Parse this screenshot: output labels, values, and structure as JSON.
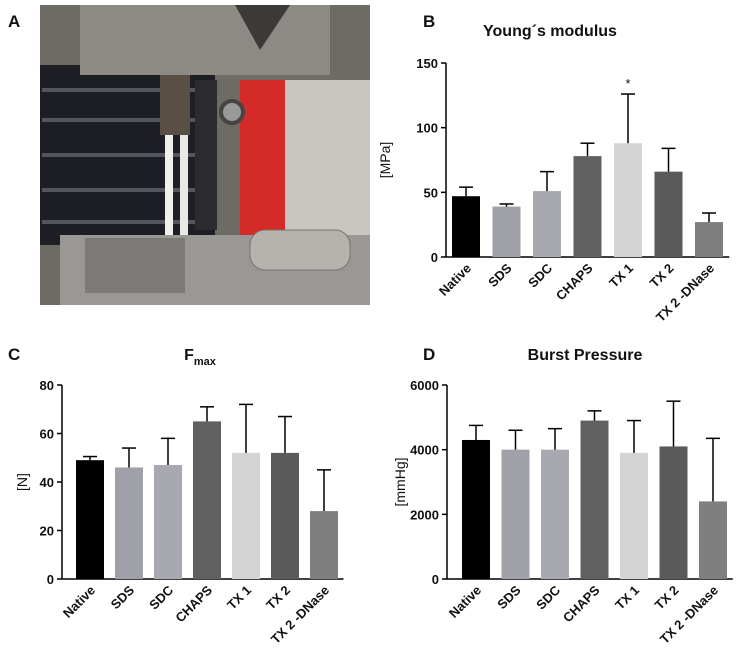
{
  "panel_labels": [
    "A",
    "B",
    "C",
    "D"
  ],
  "chart_data": [
    {
      "type": "bar",
      "title": "Young´s modulus",
      "ylabel": "[MPa]",
      "categories": [
        "Native",
        "SDS",
        "SDC",
        "CHAPS",
        "TX 1",
        "TX 2",
        "TX 2 -DNase"
      ],
      "values": [
        47,
        39,
        51,
        78,
        88,
        66,
        27
      ],
      "errors": [
        7,
        2,
        15,
        10,
        38,
        18,
        7
      ],
      "colors": [
        "#000000",
        "#a0a0a8",
        "#a8a8b0",
        "#606060",
        "#d4d4d4",
        "#5a5a5a",
        "#7f7f7f"
      ],
      "ylim": [
        0,
        150
      ],
      "yticks": [
        0,
        50,
        100,
        150
      ],
      "annotations": [
        {
          "text": "*",
          "category": "TX 1"
        }
      ]
    },
    {
      "type": "bar",
      "title": "F",
      "title_sub": "max",
      "ylabel": "[N]",
      "categories": [
        "Native",
        "SDS",
        "SDC",
        "CHAPS",
        "TX 1",
        "TX 2",
        "TX 2 -DNase"
      ],
      "values": [
        49,
        46,
        47,
        65,
        52,
        52,
        28
      ],
      "errors": [
        1.5,
        8,
        11,
        6,
        20,
        15,
        17
      ],
      "colors": [
        "#000000",
        "#a0a0a8",
        "#a8a8b0",
        "#606060",
        "#d4d4d4",
        "#5a5a5a",
        "#7f7f7f"
      ],
      "ylim": [
        0,
        80
      ],
      "yticks": [
        0,
        20,
        40,
        60,
        80
      ]
    },
    {
      "type": "bar",
      "title": "Burst Pressure",
      "ylabel": "[mmHg]",
      "categories": [
        "Native",
        "SDS",
        "SDC",
        "CHAPS",
        "TX 1",
        "TX 2",
        "TX 2 -DNase"
      ],
      "values": [
        4300,
        4000,
        4000,
        4900,
        3900,
        4100,
        2400
      ],
      "errors": [
        450,
        600,
        650,
        300,
        1000,
        1400,
        1950
      ],
      "colors": [
        "#000000",
        "#a0a0a8",
        "#a8a8b0",
        "#606060",
        "#d4d4d4",
        "#5a5a5a",
        "#7f7f7f"
      ],
      "ylim": [
        0,
        6000
      ],
      "yticks": [
        0,
        2000,
        4000,
        6000
      ]
    }
  ]
}
